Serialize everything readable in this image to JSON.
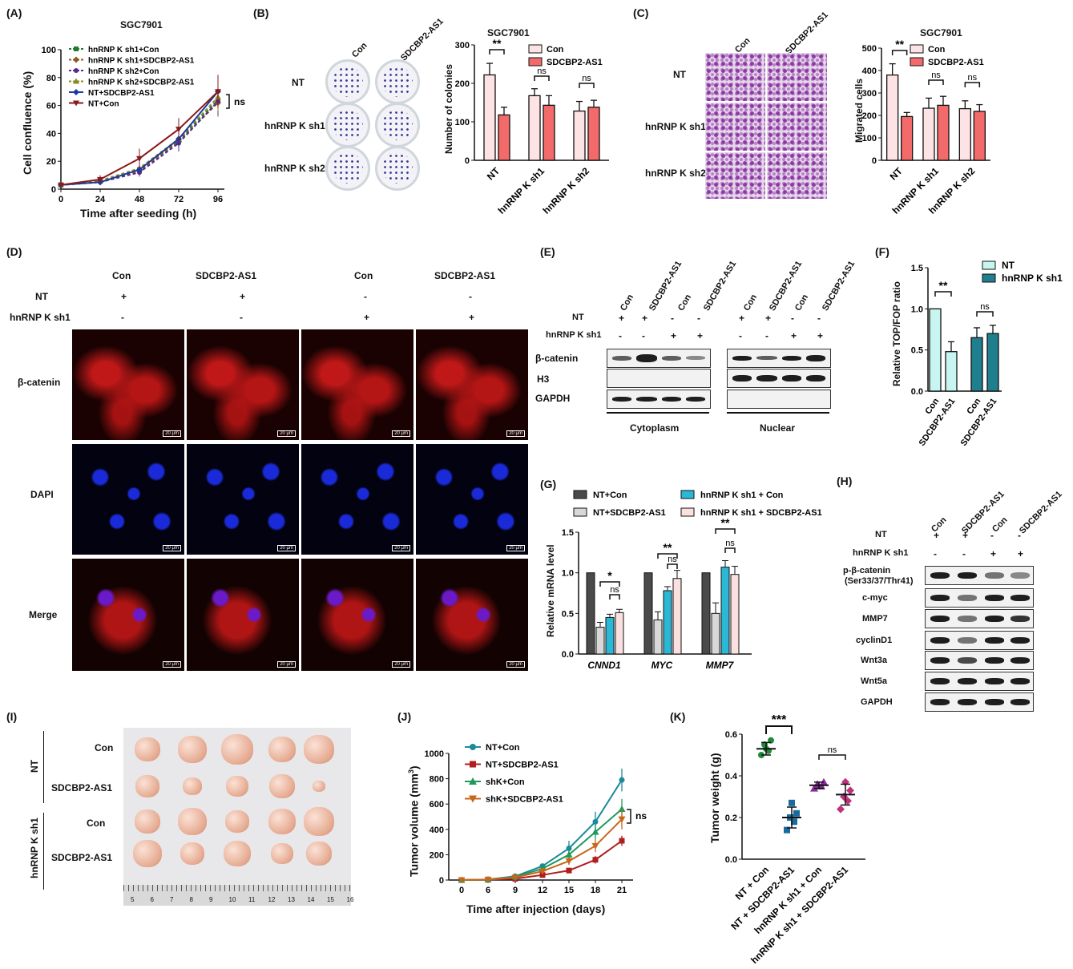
{
  "panels": {
    "A": {
      "label": "(A)",
      "title": "SGC7901",
      "xlabel": "Time after seeding (h)",
      "ylabel": "Cell confluence (%)",
      "sig": "ns"
    },
    "B": {
      "label": "(B)",
      "col_con": "Con",
      "col_sd": "SDCBP2-AS1",
      "rows": [
        "NT",
        "hnRNP K sh1",
        "hnRNP K sh2"
      ],
      "title": "SGC7901",
      "ylabel": "Number of colonies",
      "legend": [
        "Con",
        "SDCBP2-AS1"
      ],
      "sig": [
        "**",
        "ns",
        "ns"
      ]
    },
    "C": {
      "label": "(C)",
      "col_con": "Con",
      "col_sd": "SDCBP2-AS1",
      "rows": [
        "NT",
        "hnRNP K sh1",
        "hnRNP K sh2"
      ],
      "title": "SGC7901",
      "ylabel": "Migrated cells",
      "legend": [
        "Con",
        "SDCBP2-AS1"
      ],
      "sig": [
        "**",
        "ns",
        "ns"
      ]
    },
    "D": {
      "label": "(D)",
      "cols": [
        "Con",
        "SDCBP2-AS1",
        "Con",
        "SDCBP2-AS1"
      ],
      "nt_label": "NT",
      "nt_signs": [
        "+",
        "+",
        "-",
        "-"
      ],
      "sh_label": "hnRNP K sh1",
      "sh_signs": [
        "-",
        "-",
        "+",
        "+"
      ],
      "rows": [
        "β-catenin",
        "DAPI",
        "Merge"
      ],
      "scale": "20 μm"
    },
    "E": {
      "label": "(E)",
      "cols": [
        "Con",
        "SDCBP2-AS1",
        "Con",
        "SDCBP2-AS1",
        "Con",
        "SDCBP2-AS1",
        "Con",
        "SDCBP2-AS1"
      ],
      "nt_label": "NT",
      "sh_label": "hnRNP K sh1",
      "nt_signs": [
        "+",
        "+",
        "-",
        "-",
        "+",
        "+",
        "-",
        "-"
      ],
      "sh_signs": [
        "-",
        "-",
        "+",
        "+",
        "-",
        "-",
        "+",
        "+"
      ],
      "rows": [
        "β-catenin",
        "H3",
        "GAPDH"
      ],
      "groups": [
        "Cytoplasm",
        "Nuclear"
      ]
    },
    "F": {
      "label": "(F)",
      "ylabel": "Relative TOP/FOP ratio",
      "legend": [
        "NT",
        "hnRNP K sh1"
      ],
      "xticks": [
        "Con",
        "SDCBP2-AS1",
        "Con",
        "SDCBP2-AS1"
      ],
      "sig": [
        "**",
        "ns"
      ]
    },
    "G": {
      "label": "(G)",
      "ylabel": "Relative mRNA level",
      "legend": [
        "NT+Con",
        "hnRNP K sh1 + Con",
        "NT+SDCBP2-AS1",
        "hnRNP K sh1 + SDCBP2-AS1"
      ],
      "genes": [
        "CNND1",
        "MYC",
        "MMP7"
      ],
      "sig_top": [
        "*",
        "**",
        "**"
      ],
      "sig_inner": [
        "ns",
        "ns",
        "ns"
      ]
    },
    "H": {
      "label": "(H)",
      "cols": [
        "Con",
        "SDCBP2-AS1",
        "Con",
        "SDCBP2-AS1"
      ],
      "nt_label": "NT",
      "sh_label": "hnRNP K sh1",
      "nt_signs": [
        "+",
        "+",
        "-",
        "-"
      ],
      "sh_signs": [
        "-",
        "-",
        "+",
        "+"
      ],
      "rows": [
        "p-β-catenin",
        "(Ser33/37/Thr41)",
        "c-myc",
        "MMP7",
        "cyclinD1",
        "Wnt3a",
        "Wnt5a",
        "GAPDH"
      ]
    },
    "I": {
      "label": "(I)",
      "group_nt": "NT",
      "group_sh": "hnRNP K sh1",
      "rows": [
        "Con",
        "SDCBP2-AS1",
        "Con",
        "SDCBP2-AS1"
      ],
      "ruler": [
        "5",
        "6",
        "7",
        "8",
        "9",
        "10",
        "11",
        "12",
        "13",
        "14",
        "15",
        "16"
      ]
    },
    "J": {
      "label": "(J)",
      "xlabel": "Time after injection (days)",
      "ylabel_main": "Tumor volume (mm",
      "ylabel_sup": "3",
      "ylabel_end": ")",
      "sig": "ns"
    },
    "K": {
      "label": "(K)",
      "ylabel": "Tumor weight (g)",
      "xticks": [
        "NT + Con",
        "NT + SDCBP2-AS1",
        "hnRNP K sh1 + Con",
        "hnRNP K sh1 + SDCBP2-AS1"
      ],
      "sig": [
        "***",
        "ns"
      ]
    }
  },
  "colors": {
    "dark_green": "#1f7a33",
    "brown": "#8a5a20",
    "purple": "#5a2a8a",
    "olive": "#8a8a20",
    "blue": "#1a3aa0",
    "dark_red": "#8a1a1a",
    "pink_light": "#fde3e3",
    "red": "#f26a6a",
    "cyan_light": "#c8f5ef",
    "teal_dark": "#1f7f8f",
    "dark_grey": "#4a4a4a",
    "light_grey": "#d8d8d8",
    "cyan": "#2bb7d6",
    "pink_pale": "#fbe0e0",
    "teal": "#1b8a9a",
    "j_red": "#b01e1e",
    "j_green": "#1f9a5a",
    "j_orange": "#c8661a",
    "k_green": "#1f8a3a",
    "k_teal": "#1a6aa0",
    "k_purple": "#8a2aa0",
    "k_magenta": "#c2307a"
  },
  "chart_data": [
    {
      "id": "A",
      "type": "line",
      "title": "SGC7901",
      "xlabel": "Time after seeding (h)",
      "ylabel": "Cell confluence (%)",
      "x": [
        0,
        24,
        48,
        72,
        96
      ],
      "xlim": [
        0,
        96
      ],
      "ylim": [
        0,
        100
      ],
      "yticks": [
        0,
        20,
        40,
        60,
        80,
        100
      ],
      "series": [
        {
          "name": "hnRNP K sh1+Con",
          "color": "#1f7a33",
          "dash": true,
          "marker": "s",
          "values": [
            3,
            6,
            14,
            35,
            64
          ],
          "err": [
            1,
            2,
            3,
            6,
            10
          ]
        },
        {
          "name": "hnRNP K sh1+SDCBP2-AS1",
          "color": "#8a5a20",
          "dash": true,
          "marker": "d",
          "values": [
            3,
            5,
            13,
            34,
            62
          ],
          "err": [
            1,
            2,
            3,
            6,
            10
          ]
        },
        {
          "name": "hnRNP K sh2+Con",
          "color": "#5a2a8a",
          "dash": true,
          "marker": "o",
          "values": [
            3,
            5,
            12,
            33,
            63
          ],
          "err": [
            1,
            2,
            3,
            6,
            10
          ]
        },
        {
          "name": "hnRNP K sh2+SDCBP2-AS1",
          "color": "#8a8a20",
          "dash": true,
          "marker": "t",
          "values": [
            3,
            6,
            15,
            36,
            66
          ],
          "err": [
            1,
            2,
            3,
            6,
            10
          ]
        },
        {
          "name": "NT+SDCBP2-AS1",
          "color": "#1a3aa0",
          "dash": false,
          "marker": "d",
          "values": [
            3,
            5,
            14,
            36,
            70
          ],
          "err": [
            1,
            2,
            3,
            6,
            10
          ]
        },
        {
          "name": "NT+Con",
          "color": "#8a1a1a",
          "dash": false,
          "marker": "v",
          "values": [
            3,
            7,
            22,
            43,
            70
          ],
          "err": [
            1,
            3,
            7,
            8,
            12
          ]
        }
      ]
    },
    {
      "id": "B",
      "type": "bar",
      "title": "SGC7901",
      "ylabel": "Number of colonies",
      "categories": [
        "NT",
        "hnRNP K sh1",
        "hnRNP K sh2"
      ],
      "ylim": [
        0,
        300
      ],
      "yticks": [
        0,
        100,
        200,
        300
      ],
      "series": [
        {
          "name": "Con",
          "color": "#fde3e3",
          "values": [
            222,
            168,
            128
          ],
          "err": [
            30,
            18,
            25
          ]
        },
        {
          "name": "SDCBP2-AS1",
          "color": "#f26a6a",
          "values": [
            118,
            143,
            138
          ],
          "err": [
            20,
            25,
            18
          ]
        }
      ]
    },
    {
      "id": "C",
      "type": "bar",
      "title": "SGC7901",
      "ylabel": "Migrated cells",
      "categories": [
        "NT",
        "hnRNP K sh1",
        "hnRNP K sh2"
      ],
      "ylim": [
        0,
        500
      ],
      "yticks": [
        0,
        100,
        200,
        300,
        400,
        500
      ],
      "series": [
        {
          "name": "Con",
          "color": "#fde3e3",
          "values": [
            380,
            232,
            230
          ],
          "err": [
            50,
            45,
            35
          ]
        },
        {
          "name": "SDCBP2-AS1",
          "color": "#f26a6a",
          "values": [
            195,
            245,
            218
          ],
          "err": [
            18,
            40,
            30
          ]
        }
      ]
    },
    {
      "id": "F",
      "type": "bar",
      "ylabel": "Relative TOP/FOP ratio",
      "ylim": [
        0,
        1.5
      ],
      "yticks": [
        0.0,
        0.5,
        1.0,
        1.5
      ],
      "bars": [
        {
          "group": "NT",
          "label": "Con",
          "value": 1.0,
          "err": 0,
          "color": "#c8f5ef"
        },
        {
          "group": "NT",
          "label": "SDCBP2-AS1",
          "value": 0.48,
          "err": 0.12,
          "color": "#c8f5ef"
        },
        {
          "group": "hnRNP K sh1",
          "label": "Con",
          "value": 0.65,
          "err": 0.12,
          "color": "#1f7f8f"
        },
        {
          "group": "hnRNP K sh1",
          "label": "SDCBP2-AS1",
          "value": 0.7,
          "err": 0.1,
          "color": "#1f7f8f"
        }
      ]
    },
    {
      "id": "G",
      "type": "bar",
      "ylabel": "Relative mRNA level",
      "categories": [
        "CNND1",
        "MYC",
        "MMP7"
      ],
      "ylim": [
        0,
        1.5
      ],
      "yticks": [
        0.0,
        0.5,
        1.0,
        1.5
      ],
      "series": [
        {
          "name": "NT+Con",
          "color": "#4a4a4a",
          "values": [
            1.0,
            1.0,
            1.0
          ],
          "err": [
            0,
            0,
            0
          ]
        },
        {
          "name": "NT+SDCBP2-AS1",
          "color": "#d8d8d8",
          "values": [
            0.33,
            0.42,
            0.5
          ],
          "err": [
            0.06,
            0.1,
            0.13
          ]
        },
        {
          "name": "hnRNP K sh1 + Con",
          "color": "#2bb7d6",
          "values": [
            0.45,
            0.78,
            1.07
          ],
          "err": [
            0.04,
            0.05,
            0.08
          ]
        },
        {
          "name": "hnRNP K sh1 + SDCBP2-AS1",
          "color": "#fbe0e0",
          "values": [
            0.51,
            0.93,
            0.98
          ],
          "err": [
            0.04,
            0.1,
            0.1
          ]
        }
      ]
    },
    {
      "id": "J",
      "type": "line",
      "xlabel": "Time after injection (days)",
      "ylabel": "Tumor volume (mm3)",
      "x": [
        0,
        6,
        9,
        12,
        15,
        18,
        21
      ],
      "xticks": [
        0,
        6,
        9,
        12,
        15,
        18,
        21
      ],
      "ylim": [
        0,
        1000
      ],
      "yticks": [
        0,
        200,
        400,
        600,
        800,
        1000
      ],
      "series": [
        {
          "name": "NT+Con",
          "color": "#1b8a9a",
          "marker": "o",
          "values": [
            0,
            5,
            30,
            110,
            250,
            460,
            790
          ],
          "err": [
            0,
            3,
            8,
            20,
            60,
            80,
            90
          ]
        },
        {
          "name": "NT+SDCBP2-AS1",
          "color": "#b01e1e",
          "marker": "s",
          "values": [
            0,
            3,
            10,
            40,
            75,
            160,
            310
          ],
          "err": [
            0,
            2,
            4,
            10,
            20,
            30,
            40
          ]
        },
        {
          "name": "shK+Con",
          "color": "#1f9a5a",
          "marker": "t",
          "values": [
            0,
            4,
            25,
            90,
            200,
            380,
            560
          ],
          "err": [
            0,
            3,
            6,
            15,
            40,
            60,
            80
          ]
        },
        {
          "name": "shK+SDCBP2-AS1",
          "color": "#c8661a",
          "marker": "v",
          "values": [
            0,
            4,
            20,
            70,
            150,
            270,
            480
          ],
          "err": [
            0,
            3,
            6,
            15,
            30,
            50,
            80
          ]
        }
      ]
    },
    {
      "id": "K",
      "type": "scatter",
      "ylabel": "Tumor weight (g)",
      "categories": [
        "NT + Con",
        "NT + SDCBP2-AS1",
        "hnRNP K sh1 + Con",
        "hnRNP K sh1 + SDCBP2-AS1"
      ],
      "ylim": [
        0,
        0.6
      ],
      "yticks": [
        0.0,
        0.2,
        0.4,
        0.6
      ],
      "groups": [
        {
          "color": "#1f8a3a",
          "marker": "o",
          "points": [
            0.5,
            0.52,
            0.55,
            0.57,
            0.53
          ],
          "mean": 0.53,
          "sd": 0.03
        },
        {
          "color": "#1a6aa0",
          "marker": "s",
          "points": [
            0.14,
            0.18,
            0.2,
            0.22,
            0.27
          ],
          "mean": 0.2,
          "sd": 0.05
        },
        {
          "color": "#8a2aa0",
          "marker": "t",
          "points": [
            0.34,
            0.35,
            0.36,
            0.37,
            0.35
          ],
          "mean": 0.355,
          "sd": 0.015
        },
        {
          "color": "#c2307a",
          "marker": "d",
          "points": [
            0.24,
            0.28,
            0.3,
            0.33,
            0.37
          ],
          "mean": 0.31,
          "sd": 0.05
        }
      ]
    }
  ]
}
